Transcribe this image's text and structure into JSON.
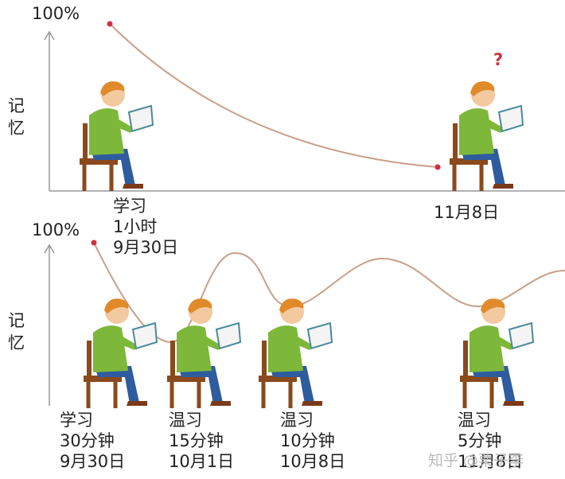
{
  "panels": [
    {
      "y_axis_top": "100%",
      "y_axis_label": [
        "记",
        "忆"
      ],
      "question_mark": "?",
      "captions": [
        {
          "lines": [
            "学习",
            "1小时",
            "9月30日"
          ]
        },
        {
          "lines": [
            "11月8日"
          ]
        }
      ]
    },
    {
      "y_axis_top": "100%",
      "y_axis_label": [
        "记",
        "忆"
      ],
      "captions": [
        {
          "lines": [
            "学习",
            "30分钟",
            "9月30日"
          ]
        },
        {
          "lines": [
            "温习",
            "15分钟",
            "10月1日"
          ]
        },
        {
          "lines": [
            "温习",
            "10分钟",
            "10月8日"
          ]
        },
        {
          "lines": [
            "温习",
            "5分钟",
            "11月8日"
          ]
        }
      ]
    }
  ],
  "watermark": "知乎 @栗子李"
}
